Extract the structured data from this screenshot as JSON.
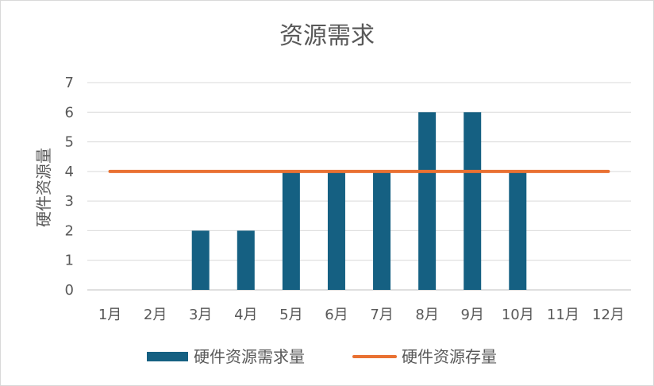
{
  "chart_data": {
    "type": "bar",
    "title": "资源需求",
    "xlabel": "",
    "ylabel": "硬件资源量",
    "categories": [
      "1月",
      "2月",
      "3月",
      "4月",
      "5月",
      "6月",
      "7月",
      "8月",
      "9月",
      "10月",
      "11月",
      "12月"
    ],
    "series": [
      {
        "name": "硬件资源需求量",
        "kind": "bar",
        "color": "#156082",
        "values": [
          0,
          0,
          2,
          2,
          4,
          4,
          4,
          6,
          6,
          4,
          0,
          0
        ]
      },
      {
        "name": "硬件资源存量",
        "kind": "line",
        "color": "#E97132",
        "values": [
          4,
          4,
          4,
          4,
          4,
          4,
          4,
          4,
          4,
          4,
          4,
          4
        ]
      }
    ],
    "ylim": [
      0,
      7
    ],
    "yticks": [
      0,
      1,
      2,
      3,
      4,
      5,
      6,
      7
    ],
    "grid": true,
    "legend": "bottom"
  }
}
